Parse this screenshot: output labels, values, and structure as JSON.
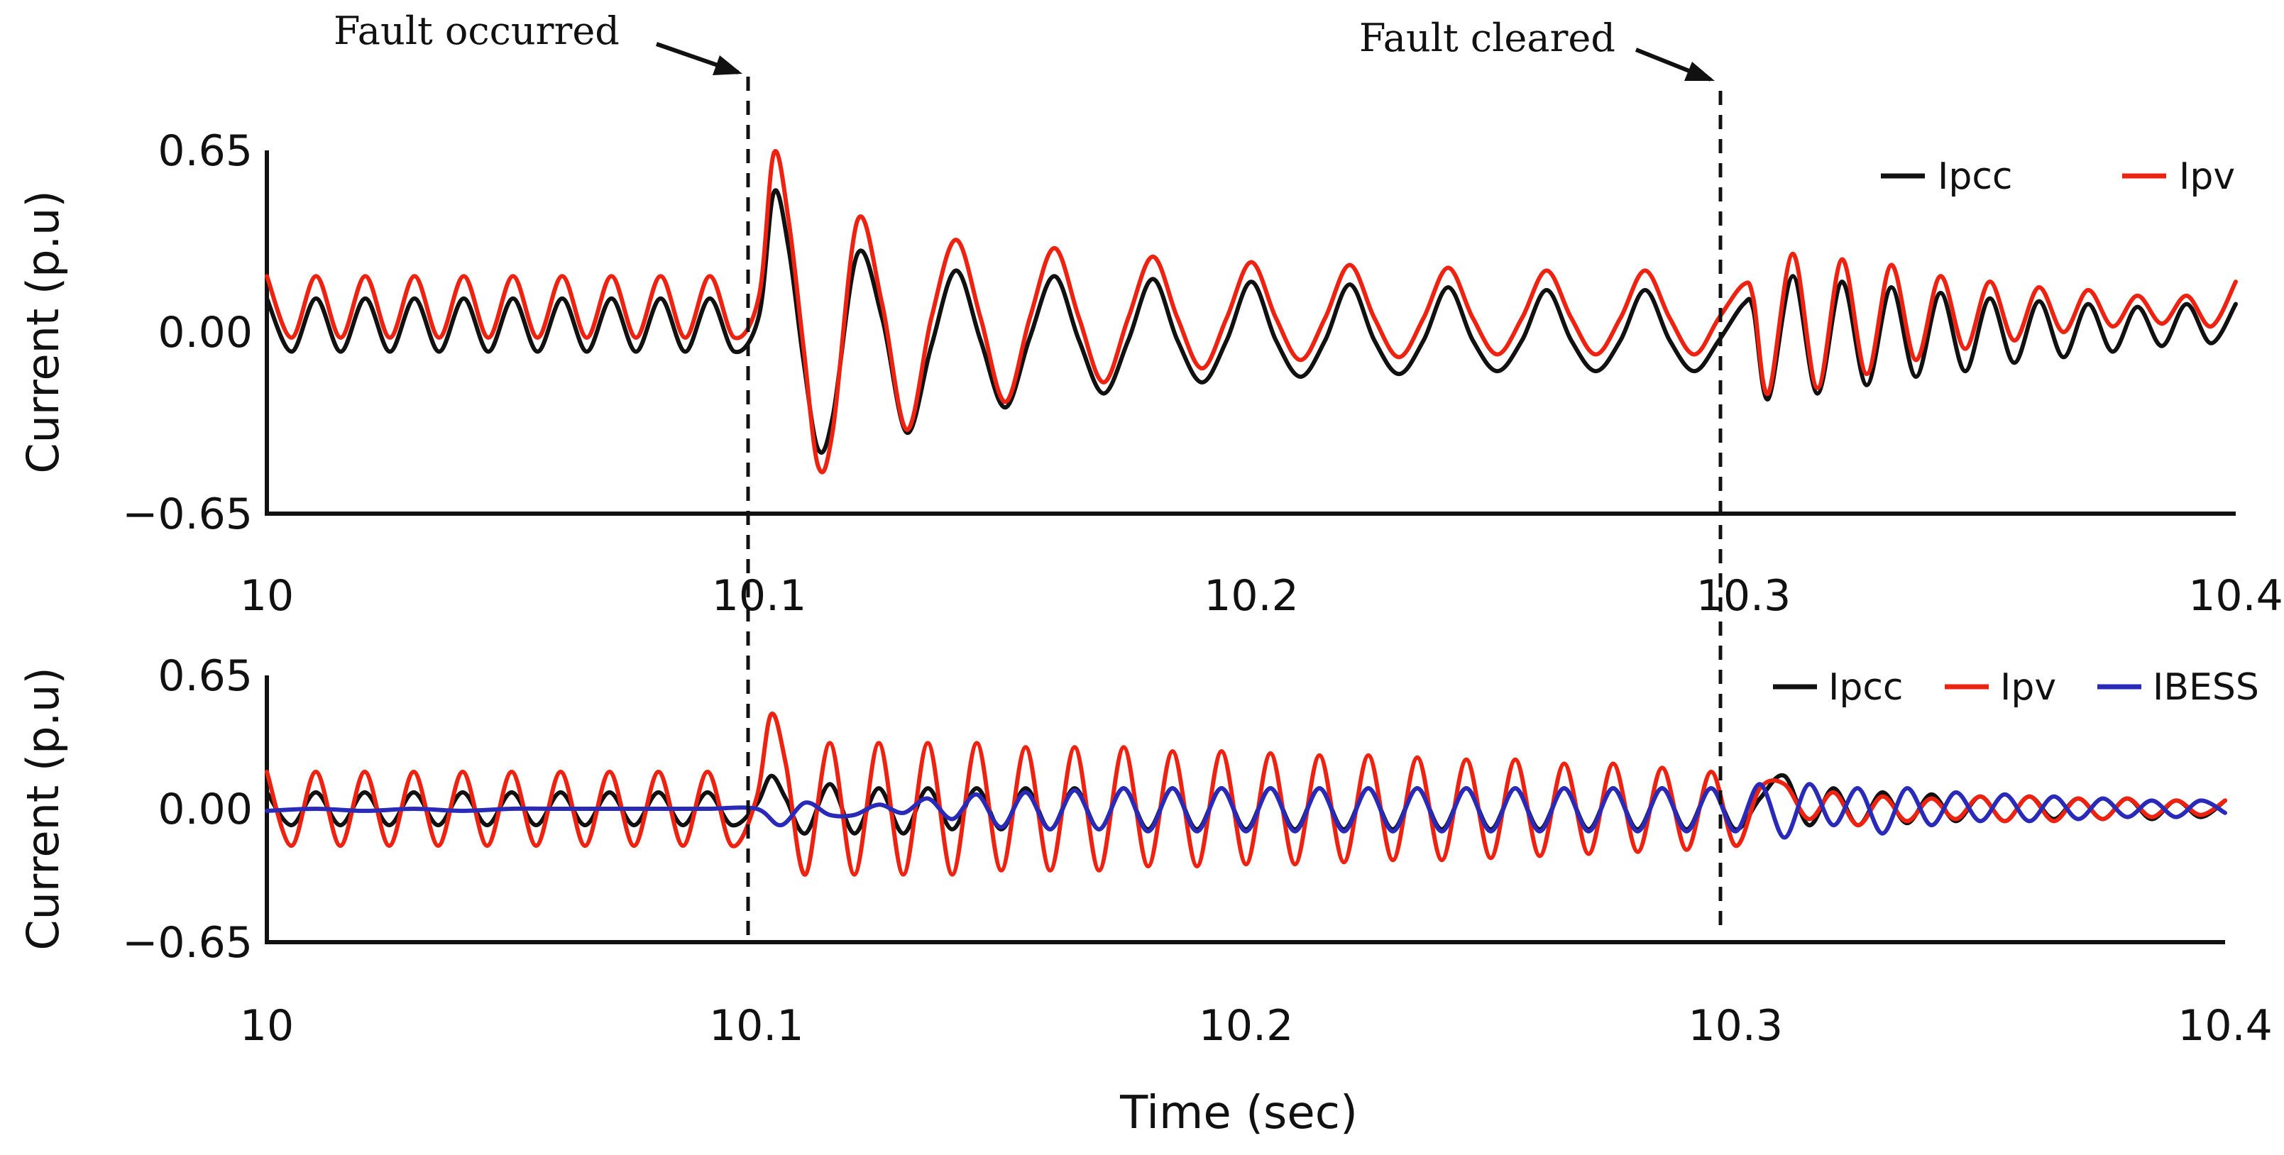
{
  "colors": {
    "Ipcc": "#111111",
    "Ipv": "#ee2211",
    "IBESS": "#2a2ab8"
  },
  "chart_data": [
    {
      "type": "line",
      "xlabel": "",
      "ylabel": "Current (p.u)",
      "xlim": [
        10,
        10.4
      ],
      "ylim": [
        -0.65,
        0.65
      ],
      "xticks": [
        "10",
        "10.1",
        "10.2",
        "10.3",
        "10.4"
      ],
      "yticks": [
        "0.65",
        "0.00",
        "−0.65"
      ],
      "legend": "top-right",
      "grid": false,
      "series": [
        {
          "name": "Ipcc",
          "color": "#111111",
          "x": [
            10.0,
            10.005,
            10.01,
            10.015,
            10.02,
            10.025,
            10.03,
            10.035,
            10.04,
            10.045,
            10.05,
            10.055,
            10.06,
            10.065,
            10.07,
            10.075,
            10.08,
            10.085,
            10.09,
            10.095,
            10.1,
            10.103,
            10.106,
            10.109,
            10.112,
            10.115,
            10.12,
            10.125,
            10.13,
            10.135,
            10.14,
            10.145,
            10.15,
            10.155,
            10.16,
            10.165,
            10.17,
            10.175,
            10.18,
            10.185,
            10.19,
            10.195,
            10.2,
            10.205,
            10.21,
            10.215,
            10.22,
            10.225,
            10.23,
            10.235,
            10.24,
            10.245,
            10.25,
            10.255,
            10.26,
            10.265,
            10.27,
            10.275,
            10.28,
            10.285,
            10.29,
            10.295,
            10.3,
            10.302,
            10.305,
            10.31,
            10.315,
            10.32,
            10.325,
            10.33,
            10.335,
            10.34,
            10.345,
            10.35,
            10.355,
            10.36,
            10.365,
            10.37,
            10.375,
            10.38,
            10.385,
            10.39,
            10.395,
            10.4
          ],
          "y": [
            0.12,
            -0.07,
            0.12,
            -0.07,
            0.12,
            -0.07,
            0.12,
            -0.07,
            0.12,
            -0.07,
            0.12,
            -0.07,
            0.12,
            -0.07,
            0.12,
            -0.07,
            0.12,
            -0.07,
            0.12,
            -0.07,
            0.06,
            0.5,
            0.3,
            -0.1,
            -0.42,
            -0.3,
            0.28,
            0.05,
            -0.36,
            -0.05,
            0.22,
            -0.03,
            -0.27,
            -0.02,
            0.2,
            -0.03,
            -0.22,
            -0.03,
            0.19,
            -0.03,
            -0.18,
            -0.03,
            0.18,
            -0.03,
            -0.16,
            -0.03,
            0.17,
            -0.03,
            -0.15,
            -0.03,
            0.16,
            -0.03,
            -0.14,
            -0.03,
            0.15,
            -0.03,
            -0.14,
            -0.03,
            0.15,
            -0.03,
            -0.14,
            -0.03,
            0.1,
            0.08,
            -0.24,
            0.2,
            -0.22,
            0.18,
            -0.19,
            0.16,
            -0.16,
            0.14,
            -0.14,
            0.12,
            -0.11,
            0.11,
            -0.09,
            0.1,
            -0.07,
            0.09,
            -0.05,
            0.1,
            -0.04,
            0.1
          ]
        },
        {
          "name": "Ipv",
          "color": "#ee2211",
          "x": [
            10.0,
            10.005,
            10.01,
            10.015,
            10.02,
            10.025,
            10.03,
            10.035,
            10.04,
            10.045,
            10.05,
            10.055,
            10.06,
            10.065,
            10.07,
            10.075,
            10.08,
            10.085,
            10.09,
            10.095,
            10.1,
            10.103,
            10.106,
            10.109,
            10.112,
            10.115,
            10.12,
            10.125,
            10.13,
            10.135,
            10.14,
            10.145,
            10.15,
            10.155,
            10.16,
            10.165,
            10.17,
            10.175,
            10.18,
            10.185,
            10.19,
            10.195,
            10.2,
            10.205,
            10.21,
            10.215,
            10.22,
            10.225,
            10.23,
            10.235,
            10.24,
            10.245,
            10.25,
            10.255,
            10.26,
            10.265,
            10.27,
            10.275,
            10.28,
            10.285,
            10.29,
            10.295,
            10.3,
            10.302,
            10.305,
            10.31,
            10.315,
            10.32,
            10.325,
            10.33,
            10.335,
            10.34,
            10.345,
            10.35,
            10.355,
            10.36,
            10.365,
            10.37,
            10.375,
            10.38,
            10.385,
            10.39,
            10.395,
            10.4
          ],
          "y": [
            0.2,
            -0.02,
            0.2,
            -0.02,
            0.2,
            -0.02,
            0.2,
            -0.02,
            0.2,
            -0.02,
            0.2,
            -0.02,
            0.2,
            -0.02,
            0.2,
            -0.02,
            0.2,
            -0.02,
            0.2,
            -0.02,
            0.13,
            0.64,
            0.4,
            -0.05,
            -0.48,
            -0.35,
            0.4,
            0.1,
            -0.35,
            0.05,
            0.33,
            0.05,
            -0.25,
            0.05,
            0.3,
            0.05,
            -0.18,
            0.05,
            0.27,
            0.05,
            -0.13,
            0.05,
            0.25,
            0.05,
            -0.1,
            0.05,
            0.24,
            0.05,
            -0.09,
            0.05,
            0.23,
            0.05,
            -0.08,
            0.05,
            0.22,
            0.05,
            -0.08,
            0.05,
            0.22,
            0.05,
            -0.08,
            0.05,
            0.17,
            0.12,
            -0.22,
            0.28,
            -0.2,
            0.26,
            -0.15,
            0.24,
            -0.1,
            0.2,
            -0.06,
            0.18,
            -0.03,
            0.16,
            0.0,
            0.15,
            0.02,
            0.13,
            0.03,
            0.13,
            0.02,
            0.18
          ]
        }
      ]
    },
    {
      "type": "line",
      "xlabel": "Time (sec)",
      "ylabel": "Current (p.u)",
      "xlim": [
        10,
        10.4
      ],
      "ylim": [
        -0.65,
        0.65
      ],
      "xticks": [
        "10",
        "10.1",
        "10.2",
        "10.3",
        "10.4"
      ],
      "yticks": [
        "0.65",
        "0.00",
        "−0.65"
      ],
      "legend": "top-right",
      "grid": false,
      "series": [
        {
          "name": "Ipcc",
          "color": "#111111",
          "x": [
            10.0,
            10.005,
            10.01,
            10.015,
            10.02,
            10.025,
            10.03,
            10.035,
            10.04,
            10.045,
            10.05,
            10.055,
            10.06,
            10.065,
            10.07,
            10.075,
            10.08,
            10.085,
            10.09,
            10.095,
            10.1,
            10.103,
            10.106,
            10.11,
            10.115,
            10.12,
            10.125,
            10.13,
            10.135,
            10.14,
            10.145,
            10.15,
            10.155,
            10.16,
            10.165,
            10.17,
            10.175,
            10.18,
            10.185,
            10.19,
            10.195,
            10.2,
            10.205,
            10.21,
            10.215,
            10.22,
            10.225,
            10.23,
            10.235,
            10.24,
            10.245,
            10.25,
            10.255,
            10.26,
            10.265,
            10.27,
            10.275,
            10.28,
            10.285,
            10.29,
            10.295,
            10.3,
            10.305,
            10.31,
            10.315,
            10.32,
            10.325,
            10.33,
            10.335,
            10.34,
            10.345,
            10.35,
            10.355,
            10.36,
            10.365,
            10.37,
            10.375,
            10.38,
            10.385,
            10.39,
            10.395,
            10.4
          ],
          "y": [
            0.08,
            -0.08,
            0.08,
            -0.08,
            0.08,
            -0.08,
            0.08,
            -0.08,
            0.08,
            -0.08,
            0.08,
            -0.08,
            0.08,
            -0.08,
            0.08,
            -0.08,
            0.08,
            -0.08,
            0.08,
            -0.08,
            0.02,
            0.16,
            0.05,
            -0.12,
            0.12,
            -0.12,
            0.1,
            -0.12,
            0.1,
            -0.1,
            0.1,
            -0.1,
            0.1,
            -0.1,
            0.1,
            -0.1,
            0.1,
            -0.1,
            0.1,
            -0.1,
            0.1,
            -0.1,
            0.1,
            -0.1,
            0.1,
            -0.1,
            0.1,
            -0.1,
            0.1,
            -0.1,
            0.1,
            -0.1,
            0.1,
            -0.1,
            0.1,
            -0.1,
            0.1,
            -0.1,
            0.1,
            -0.1,
            0.1,
            -0.1,
            0.05,
            0.16,
            -0.08,
            0.1,
            -0.08,
            0.08,
            -0.07,
            0.07,
            -0.06,
            0.06,
            -0.06,
            0.06,
            -0.05,
            0.05,
            -0.05,
            0.05,
            -0.05,
            0.04,
            -0.04,
            0.04
          ]
        },
        {
          "name": "Ipv",
          "color": "#ee2211",
          "x": [
            10.0,
            10.005,
            10.01,
            10.015,
            10.02,
            10.025,
            10.03,
            10.035,
            10.04,
            10.045,
            10.05,
            10.055,
            10.06,
            10.065,
            10.07,
            10.075,
            10.08,
            10.085,
            10.09,
            10.095,
            10.1,
            10.103,
            10.106,
            10.11,
            10.115,
            10.12,
            10.125,
            10.13,
            10.135,
            10.14,
            10.145,
            10.15,
            10.155,
            10.16,
            10.165,
            10.17,
            10.175,
            10.18,
            10.185,
            10.19,
            10.195,
            10.2,
            10.205,
            10.21,
            10.215,
            10.22,
            10.225,
            10.23,
            10.235,
            10.24,
            10.245,
            10.25,
            10.255,
            10.26,
            10.265,
            10.27,
            10.275,
            10.28,
            10.285,
            10.29,
            10.295,
            10.3,
            10.305,
            10.31,
            10.315,
            10.32,
            10.325,
            10.33,
            10.335,
            10.34,
            10.345,
            10.35,
            10.355,
            10.36,
            10.365,
            10.37,
            10.375,
            10.38,
            10.385,
            10.39,
            10.395,
            10.4
          ],
          "y": [
            0.18,
            -0.18,
            0.18,
            -0.18,
            0.18,
            -0.18,
            0.18,
            -0.18,
            0.18,
            -0.18,
            0.18,
            -0.18,
            0.18,
            -0.18,
            0.18,
            -0.18,
            0.18,
            -0.18,
            0.18,
            -0.18,
            0.05,
            0.46,
            0.22,
            -0.32,
            0.32,
            -0.32,
            0.32,
            -0.32,
            0.32,
            -0.32,
            0.32,
            -0.3,
            0.3,
            -0.3,
            0.3,
            -0.3,
            0.3,
            -0.28,
            0.28,
            -0.28,
            0.28,
            -0.27,
            0.27,
            -0.27,
            0.26,
            -0.26,
            0.26,
            -0.25,
            0.25,
            -0.25,
            0.24,
            -0.24,
            0.24,
            -0.23,
            0.22,
            -0.22,
            0.22,
            -0.21,
            0.2,
            -0.2,
            0.18,
            -0.18,
            0.1,
            0.12,
            -0.05,
            0.08,
            -0.08,
            0.06,
            -0.06,
            0.05,
            -0.05,
            0.06,
            -0.06,
            0.06,
            -0.06,
            0.05,
            -0.05,
            0.05,
            -0.04,
            0.04,
            -0.03,
            0.04
          ]
        },
        {
          "name": "IBESS",
          "color": "#2a2ab8",
          "x": [
            10.0,
            10.01,
            10.02,
            10.03,
            10.04,
            10.05,
            10.06,
            10.07,
            10.08,
            10.09,
            10.1,
            10.105,
            10.11,
            10.115,
            10.12,
            10.125,
            10.13,
            10.135,
            10.14,
            10.145,
            10.15,
            10.155,
            10.16,
            10.165,
            10.17,
            10.175,
            10.18,
            10.185,
            10.19,
            10.195,
            10.2,
            10.205,
            10.21,
            10.215,
            10.22,
            10.225,
            10.23,
            10.235,
            10.24,
            10.245,
            10.25,
            10.255,
            10.26,
            10.265,
            10.27,
            10.275,
            10.28,
            10.285,
            10.29,
            10.295,
            10.3,
            10.305,
            10.31,
            10.315,
            10.32,
            10.325,
            10.33,
            10.335,
            10.34,
            10.345,
            10.35,
            10.355,
            10.36,
            10.365,
            10.37,
            10.375,
            10.38,
            10.385,
            10.39,
            10.395,
            10.4
          ],
          "y": [
            -0.01,
            0.0,
            -0.01,
            0.0,
            -0.01,
            0.0,
            0.0,
            0.0,
            0.0,
            0.0,
            0.0,
            -0.08,
            0.03,
            -0.03,
            -0.03,
            0.02,
            -0.02,
            0.05,
            -0.05,
            0.07,
            -0.09,
            0.08,
            -0.1,
            0.09,
            -0.1,
            0.1,
            -0.11,
            0.1,
            -0.11,
            0.1,
            -0.11,
            0.1,
            -0.11,
            0.1,
            -0.11,
            0.1,
            -0.11,
            0.1,
            -0.11,
            0.1,
            -0.11,
            0.1,
            -0.11,
            0.1,
            -0.11,
            0.1,
            -0.11,
            0.1,
            -0.11,
            0.1,
            -0.11,
            0.12,
            -0.14,
            0.12,
            -0.08,
            0.1,
            -0.12,
            0.1,
            -0.08,
            0.08,
            -0.06,
            0.07,
            -0.06,
            0.06,
            -0.05,
            0.05,
            -0.04,
            0.04,
            -0.04,
            0.04,
            -0.02
          ]
        }
      ]
    }
  ],
  "annotations": {
    "fault_occurred": {
      "label": "Fault occurred",
      "time": 10.1
    },
    "fault_cleared": {
      "label": "Fault cleared",
      "time": 10.3
    }
  }
}
